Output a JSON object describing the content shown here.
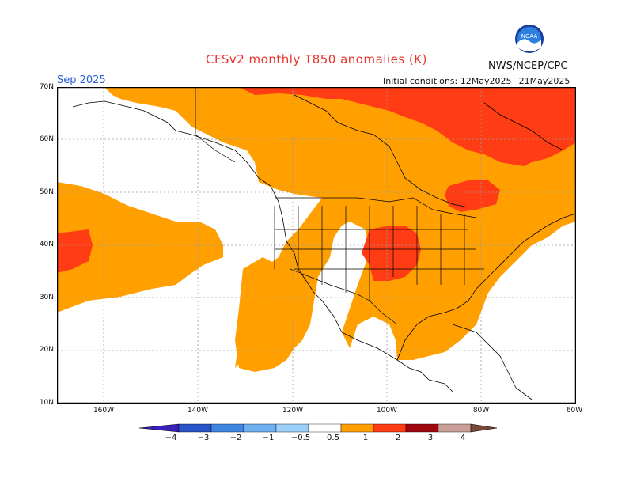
{
  "title": "CFSv2 monthly T850 anomalies (K)",
  "valid_month": "Sep 2025",
  "initial_conditions": "Initial conditions: 12May2025−21May2025",
  "agency": "NWS/NCEP/CPC",
  "logo_text": "NOAA",
  "lat_labels": [
    "70N",
    "60N",
    "50N",
    "40N",
    "30N",
    "20N",
    "10N"
  ],
  "lon_labels": [
    "160W",
    "140W",
    "120W",
    "100W",
    "80W",
    "60W"
  ],
  "colorbar": {
    "labels": [
      "−4",
      "−3",
      "−2",
      "−1",
      "−0.5",
      "0.5",
      "1",
      "2",
      "3",
      "4"
    ],
    "colors": [
      "#3a1fb8",
      "#2a55c8",
      "#3f86e0",
      "#6fb0f0",
      "#9dd0f8",
      "#ffffff",
      "#ff9f00",
      "#ff3c14",
      "#a00810",
      "#c8a098",
      "#7a4838"
    ]
  },
  "colors": {
    "orange": "#ff9f00",
    "red": "#ff3c14",
    "land_lines": "#000000"
  }
}
